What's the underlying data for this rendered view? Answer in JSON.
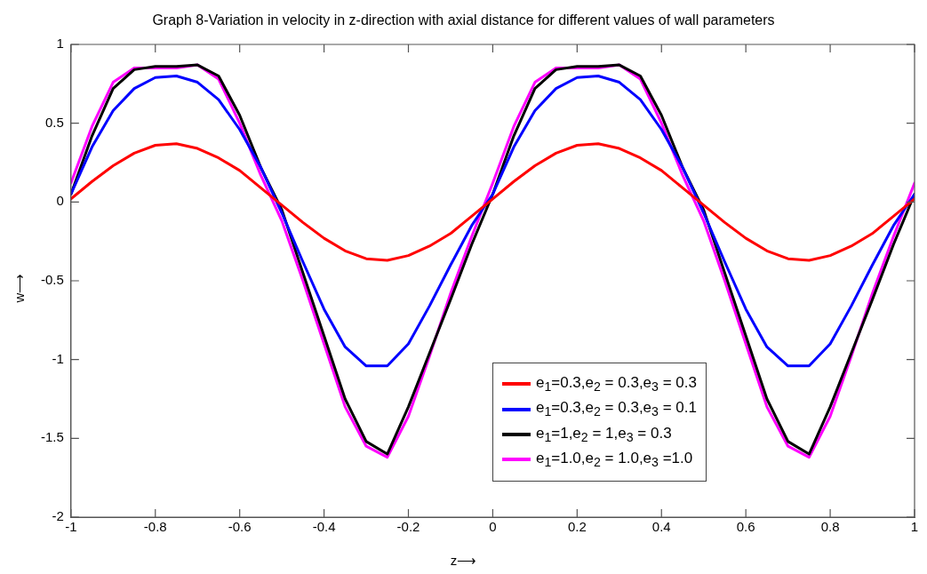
{
  "chart_data": {
    "type": "line",
    "title": "Graph 8-Variation in velocity in z-direction with axial distance for different values of wall parameters",
    "xlabel": "z⟶",
    "ylabel": "w⟶",
    "x": [
      -1,
      -0.95,
      -0.9,
      -0.85,
      -0.8,
      -0.75,
      -0.7,
      -0.65,
      -0.6,
      -0.55,
      -0.5,
      -0.45,
      -0.4,
      -0.35,
      -0.3,
      -0.25,
      -0.2,
      -0.15,
      -0.1,
      -0.05,
      0,
      0.05,
      0.1,
      0.15,
      0.2,
      0.25,
      0.3,
      0.35,
      0.4,
      0.45,
      0.5,
      0.55,
      0.6,
      0.65,
      0.7,
      0.75,
      0.8,
      0.85,
      0.9,
      0.95,
      1
    ],
    "xlim": [
      -1,
      1
    ],
    "xticks": [
      -1,
      -0.8,
      -0.6,
      -0.4,
      -0.2,
      0,
      0.2,
      0.4,
      0.6,
      0.8,
      1
    ],
    "ylim": [
      -2,
      1
    ],
    "yticks": [
      -2,
      -1.5,
      -1,
      -0.5,
      0,
      0.5,
      1
    ],
    "grid": false,
    "legend": "bottom",
    "marker": "none",
    "line_style": "solid",
    "series": [
      {
        "name": "e$_{1}$=0.3,e$_{2}$ = 0.3,e$_{3}$ = 0.3",
        "color": "#ff0000",
        "values": [
          0.02,
          0.13,
          0.23,
          0.31,
          0.36,
          0.37,
          0.34,
          0.28,
          0.2,
          0.09,
          -0.02,
          -0.13,
          -0.23,
          -0.31,
          -0.36,
          -0.37,
          -0.34,
          -0.28,
          -0.2,
          -0.09,
          0.02,
          0.13,
          0.23,
          0.31,
          0.36,
          0.37,
          0.34,
          0.28,
          0.2,
          0.09,
          -0.02,
          -0.13,
          -0.23,
          -0.31,
          -0.36,
          -0.37,
          -0.34,
          -0.28,
          -0.2,
          -0.09,
          0.02
        ]
      },
      {
        "name": "e$_{1}$=0.3,e$_{2}$ = 0.3,e$_{3}$ = 0.1",
        "color": "#0000ff",
        "values": [
          0.05,
          0.35,
          0.58,
          0.72,
          0.79,
          0.8,
          0.76,
          0.65,
          0.46,
          0.22,
          -0.07,
          -0.38,
          -0.68,
          -0.92,
          -1.04,
          -1.04,
          -0.9,
          -0.66,
          -0.4,
          -0.15,
          0.05,
          0.35,
          0.58,
          0.72,
          0.79,
          0.8,
          0.76,
          0.65,
          0.46,
          0.22,
          -0.07,
          -0.38,
          -0.68,
          -0.92,
          -1.04,
          -1.04,
          -0.9,
          -0.66,
          -0.4,
          -0.15,
          0.05
        ]
      },
      {
        "name": "e$_{1}$=1,e$_{2}$ = 1,e$_{3}$ = 0.3",
        "color": "#000000",
        "values": [
          0.05,
          0.42,
          0.72,
          0.84,
          0.86,
          0.86,
          0.87,
          0.8,
          0.55,
          0.22,
          -0.05,
          -0.45,
          -0.85,
          -1.25,
          -1.52,
          -1.6,
          -1.3,
          -0.96,
          -0.62,
          -0.27,
          0.05,
          0.42,
          0.72,
          0.84,
          0.86,
          0.86,
          0.87,
          0.8,
          0.55,
          0.22,
          -0.05,
          -0.45,
          -0.85,
          -1.25,
          -1.52,
          -1.6,
          -1.3,
          -0.96,
          -0.62,
          -0.27,
          0.05
        ]
      },
      {
        "name": "e$_{1}$=1.0,e$_{2}$ = 1.0,e$_{3}$ =1.0",
        "color": "#ff00ff",
        "values": [
          0.12,
          0.48,
          0.76,
          0.85,
          0.85,
          0.85,
          0.87,
          0.78,
          0.5,
          0.17,
          -0.12,
          -0.5,
          -0.9,
          -1.3,
          -1.55,
          -1.62,
          -1.36,
          -0.98,
          -0.58,
          -0.22,
          0.12,
          0.48,
          0.76,
          0.85,
          0.85,
          0.85,
          0.87,
          0.78,
          0.5,
          0.17,
          -0.12,
          -0.5,
          -0.9,
          -1.3,
          -1.55,
          -1.62,
          -1.36,
          -0.98,
          -0.58,
          -0.22,
          0.12
        ]
      }
    ]
  }
}
